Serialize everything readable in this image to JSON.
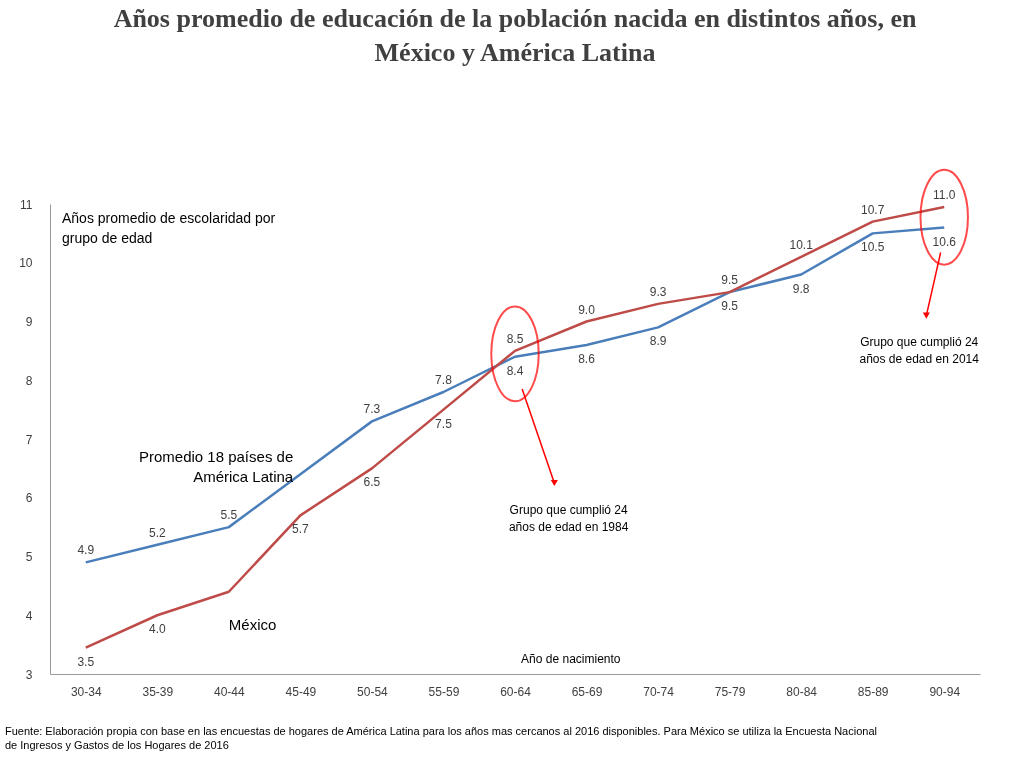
{
  "chart_data": {
    "type": "line",
    "title": "Años promedio de educación de la población nacida en distintos años, en México y América Latina",
    "xlabel": "Año de nacimiento",
    "ylabel": "Años promedio de escolaridad por grupo de edad",
    "categories": [
      "30-34",
      "35-39",
      "40-44",
      "45-49",
      "50-54",
      "55-59",
      "60-64",
      "65-69",
      "70-74",
      "75-79",
      "80-84",
      "85-89",
      "90-94"
    ],
    "series": [
      {
        "name": "Promedio 18 países de América Latina",
        "color": "#4a7ebb",
        "values": [
          4.9,
          5.2,
          5.5,
          6.4,
          7.3,
          7.8,
          8.4,
          8.6,
          8.9,
          9.5,
          9.8,
          10.5,
          10.6
        ],
        "value_labels": [
          "4.9",
          "5.2",
          "5.5",
          null,
          "7.3",
          "7.8",
          "8.4",
          "8.6",
          "8.9",
          "9.5",
          "9.8",
          "10.5",
          "10.6"
        ]
      },
      {
        "name": "México",
        "color": "#be4b48",
        "values": [
          3.45,
          4.0,
          4.4,
          5.7,
          6.5,
          7.5,
          8.5,
          9.0,
          9.3,
          9.5,
          10.1,
          10.7,
          10.95
        ],
        "value_labels": [
          "3.5",
          "4.0",
          null,
          "5.7",
          "6.5",
          "7.5",
          "8.5",
          "9.0",
          "9.3",
          "9.5",
          "10.1",
          "10.7",
          "11.0"
        ]
      }
    ],
    "ylim": [
      3,
      11
    ],
    "yticks": [
      3,
      4,
      5,
      6,
      7,
      8,
      9,
      10,
      11
    ],
    "marker": "none",
    "line_style": "solid",
    "annotations": [
      "Grupo que cumplió 24 años de edad en 1984",
      "Grupo que cumplió 24 años de edad en 2014",
      "Fuente: Elaboración propia con base en las encuestas de hogares de América Latina para los años mas cercanos al 2016 disponibles. Para México se utiliza la Encuesta Nacional de Ingresos y Gastos de los Hogares de 2016"
    ]
  }
}
